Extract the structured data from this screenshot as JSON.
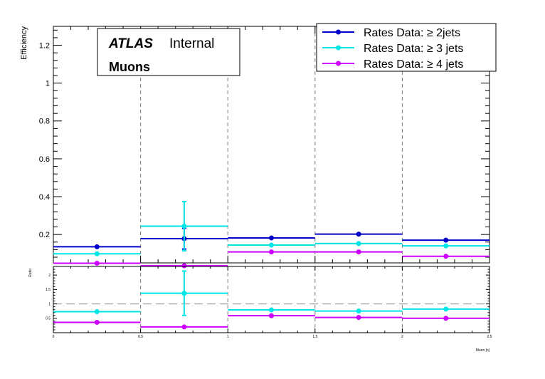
{
  "chart_data": [
    {
      "type": "scatter",
      "panel": "main",
      "ylabel": "Efficiency",
      "xlim": [
        0,
        2.5
      ],
      "ylim": [
        0.05,
        1.3
      ],
      "y_ticks": [
        "0.2",
        "0.4",
        "0.6",
        "0.8",
        "1",
        "1.2"
      ],
      "grid": "vertical dashed at bin edges",
      "atlas_label": "ATLAS",
      "atlas_status": "Internal",
      "channel_label": "Muons",
      "legend_placement": "top-right",
      "bins": [
        [
          0,
          0.5
        ],
        [
          0.5,
          1.0
        ],
        [
          1.0,
          1.5
        ],
        [
          1.5,
          2.0
        ],
        [
          2.0,
          2.5
        ]
      ],
      "series": [
        {
          "name": "Rates Data: ≥ 2jets",
          "color": "#0000cc",
          "values": [
            0.135,
            0.178,
            0.182,
            0.202,
            0.17
          ],
          "yerr": [
            0.0,
            0.055,
            0.0,
            0.0,
            0.0
          ]
        },
        {
          "name": "Rates Data: ≥ 3 jets",
          "color": "#00e5e5",
          "values": [
            0.098,
            0.244,
            0.144,
            0.152,
            0.14
          ],
          "yerr": [
            0.0,
            0.13,
            0.0,
            0.0,
            0.0
          ]
        },
        {
          "name": "Rates Data: ≥ 4 jets",
          "color": "#cc00ff",
          "values": [
            0.048,
            0.035,
            0.108,
            0.108,
            0.085
          ],
          "yerr": [
            0.0,
            0.0,
            0.0,
            0.0,
            0.0
          ]
        }
      ]
    },
    {
      "type": "scatter",
      "panel": "ratio",
      "ylabel": "Ratio",
      "xlabel": "Muon |η|",
      "xlim": [
        0,
        2.5
      ],
      "ylim": [
        0,
        2.3
      ],
      "reference_line": 1,
      "y_ticks": [
        "0.5",
        "1",
        "1.5",
        "2"
      ],
      "x_ticks": [
        "0",
        "0.5",
        "1",
        "1.5",
        "2",
        "2.5"
      ],
      "bins": [
        [
          0,
          0.5
        ],
        [
          0.5,
          1.0
        ],
        [
          1.0,
          1.5
        ],
        [
          1.5,
          2.0
        ],
        [
          2.0,
          2.5
        ]
      ],
      "series": [
        {
          "name": "Rates Data: ≥ 3 jets",
          "color": "#00e5e5",
          "values": [
            0.73,
            1.37,
            0.79,
            0.75,
            0.82
          ],
          "yerr": [
            0.0,
            0.77,
            0.0,
            0.0,
            0.0
          ]
        },
        {
          "name": "Rates Data: ≥ 4 jets",
          "color": "#cc00ff",
          "values": [
            0.36,
            0.2,
            0.59,
            0.53,
            0.5
          ],
          "yerr": [
            0.0,
            0.0,
            0.0,
            0.0,
            0.0
          ]
        }
      ]
    }
  ]
}
